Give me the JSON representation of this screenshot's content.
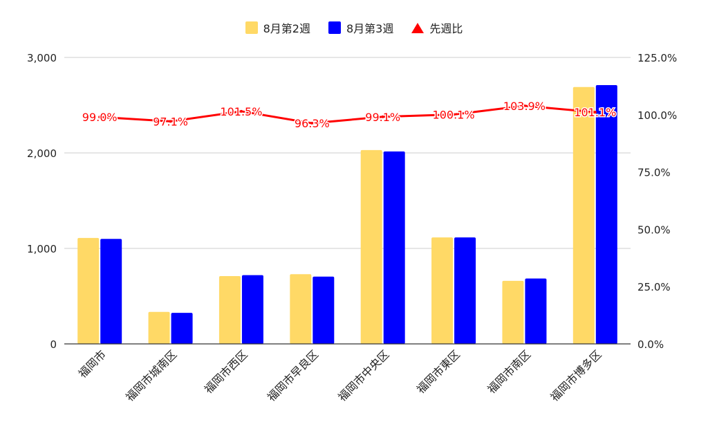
{
  "chart_data": {
    "type": "bar",
    "categories": [
      "福岡市",
      "福岡市城南区",
      "福岡市西区",
      "福岡市早良区",
      "福岡市中央区",
      "福岡市東区",
      "福岡市南区",
      "福岡市博多区"
    ],
    "series": [
      {
        "name": "8月第2週",
        "type": "bar",
        "axis": "left",
        "color": "#ffd966",
        "values": [
          1110,
          335,
          710,
          730,
          2030,
          1115,
          660,
          2690
        ]
      },
      {
        "name": "8月第3週",
        "type": "bar",
        "axis": "left",
        "color": "#0000ff",
        "values": [
          1100,
          325,
          720,
          705,
          2015,
          1115,
          685,
          2710
        ]
      },
      {
        "name": "先週比",
        "type": "line",
        "axis": "right",
        "color": "#ff0000",
        "values": [
          99.0,
          97.1,
          101.5,
          96.3,
          99.1,
          100.1,
          103.9,
          101.1
        ],
        "labels": [
          "99.0%",
          "97.1%",
          "101.5%",
          "96.3%",
          "99.1%",
          "100.1%",
          "103.9%",
          "101.1%"
        ]
      }
    ],
    "y_left": {
      "min": 0,
      "max": 3000,
      "ticks": [
        0,
        1000,
        2000,
        3000
      ],
      "tick_labels": [
        "0",
        "1,000",
        "2,000",
        "3,000"
      ]
    },
    "y_right": {
      "min": 0,
      "max": 125,
      "ticks": [
        0,
        25,
        50,
        75,
        100,
        125
      ],
      "tick_labels": [
        "0.0%",
        "25.0%",
        "50.0%",
        "75.0%",
        "100.0%",
        "125.0%"
      ]
    },
    "legend_position": "top",
    "grid": true
  }
}
